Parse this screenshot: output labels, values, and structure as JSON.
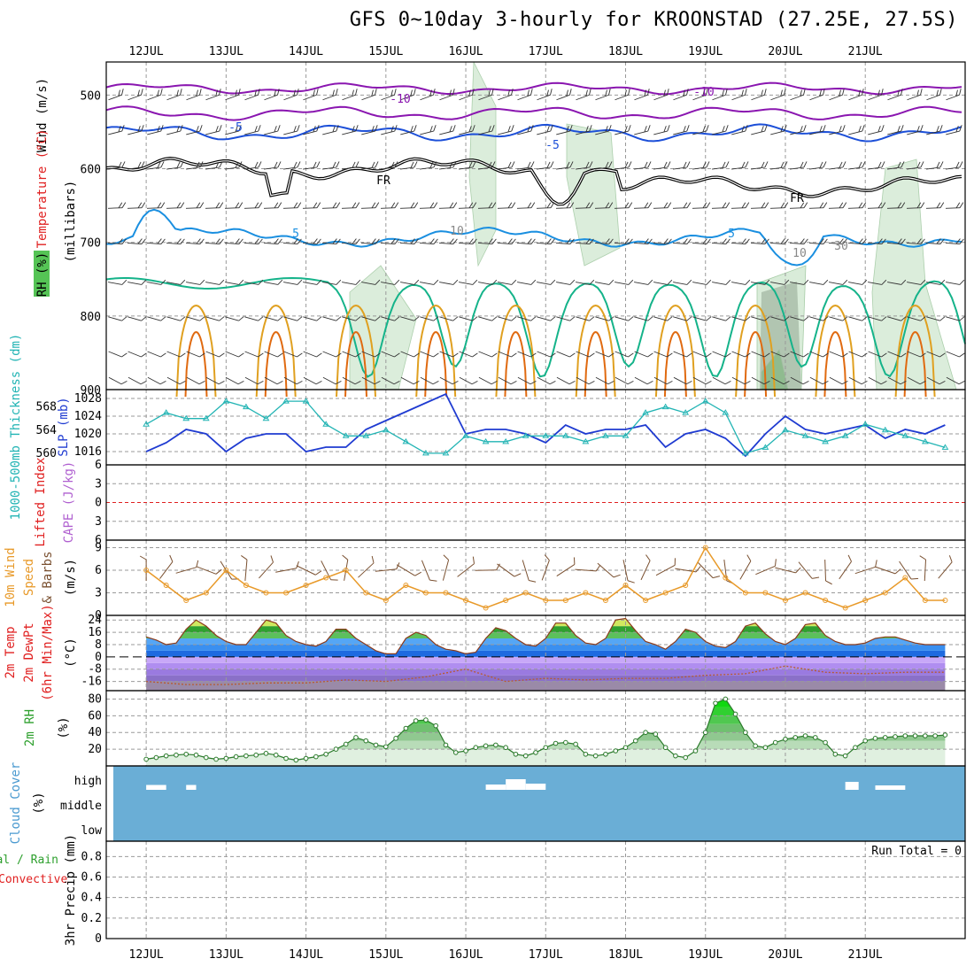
{
  "title": "GFS 0~10day 3-hourly for KROONSTAD (27.25E, 27.5S)",
  "dates": [
    "12JUL",
    "13JUL",
    "14JUL",
    "15JUL",
    "16JUL",
    "17JUL",
    "18JUL",
    "19JUL",
    "20JUL",
    "21JUL"
  ],
  "colors": {
    "grid": "#9a9a9a",
    "purple": "#8a16b0",
    "blue": "#1c4fd8",
    "lightblue": "#1a8fe0",
    "teal": "#15b38a",
    "orange": "#e0a020",
    "darkorange": "#e06a10",
    "magenta": "#d0108a",
    "black": "#000000",
    "slp": "#1f3bd1",
    "thick": "#22b4b4",
    "wind": "#e89a2a",
    "barb": "#7a5030",
    "rh": "#2ea02e",
    "cloud": "#6aaed6",
    "red": "#e02020"
  },
  "panels": {
    "upper": {
      "ylabel_parts": [
        "RH (%)",
        "Temperature (°C)",
        "Wind (m/s)"
      ],
      "ylabel_axis": "(millibars)",
      "yticks": [
        500,
        600,
        700,
        800,
        900
      ],
      "contour_labels": [
        "-10",
        "-10",
        "-5",
        "-5",
        "FR",
        "FR",
        "5",
        "5",
        "10",
        "10",
        "30"
      ]
    },
    "slp": {
      "ylabel_left": "1000-500mb Thickness (dm)",
      "ylabel_right": "SLP (mb)",
      "left_ticks": [
        560,
        564,
        568
      ],
      "right_ticks": [
        1016,
        1020,
        1024,
        1028
      ]
    },
    "cape": {
      "ylabel_a": "Lifted Index",
      "ylabel_b": "CAPE (J/kg)",
      "ticks": [
        "6",
        "3",
        "0",
        "3",
        "6"
      ]
    },
    "wind10": {
      "ylabel_a": "10m Wind",
      "ylabel_b": "Speed",
      "ylabel_c": "& Barbs",
      "unit": "(m/s)",
      "ticks": [
        0,
        3,
        6,
        9
      ]
    },
    "temp2m": {
      "ylabel_a": "2m Temp",
      "ylabel_b": "2m DewPt",
      "ylabel_c": "(6hr Min/Max)",
      "unit": "(°C)",
      "ticks": [
        24,
        16,
        8,
        0,
        -8,
        -16
      ]
    },
    "rh2m": {
      "ylabel": "2m RH",
      "unit": "(%)",
      "ticks": [
        20,
        40,
        60,
        80
      ]
    },
    "cloud": {
      "ylabel": "Cloud Cover",
      "unit": "(%)",
      "ticks": [
        "high",
        "middle",
        "low"
      ]
    },
    "precip": {
      "ylabel_a": "Total / Rain",
      "ylabel_b": "Convective",
      "ylabel_c": "3hr Precip (mm)",
      "ticks": [
        0,
        0.2,
        0.4,
        0.6,
        0.8
      ],
      "run_total": "Run Total = 0"
    }
  },
  "chart_data": [
    {
      "type": "line",
      "name": "slp",
      "unit": "mb",
      "x_hours": [
        0,
        6,
        12,
        18,
        24,
        30,
        36,
        42,
        48,
        54,
        60,
        66,
        72,
        78,
        84,
        90,
        96,
        102,
        108,
        114,
        120,
        126,
        132,
        138,
        144,
        150,
        156,
        162,
        168,
        174,
        180,
        186,
        192,
        198,
        204,
        210,
        216,
        222,
        228,
        234,
        240
      ],
      "values": [
        1016,
        1018,
        1021,
        1020,
        1016,
        1019,
        1020,
        1020,
        1016,
        1017,
        1017,
        1021,
        1023,
        1025,
        1027,
        1029,
        1020,
        1021,
        1021,
        1020,
        1018,
        1022,
        1020,
        1021,
        1021,
        1022,
        1017,
        1020,
        1021,
        1019,
        1015,
        1020,
        1024,
        1021,
        1020,
        1021,
        1022,
        1019,
        1021,
        1020,
        1022
      ],
      "ylim": [
        1013,
        1030
      ]
    },
    {
      "type": "line",
      "name": "thickness",
      "unit": "dm",
      "x_hours": [
        0,
        6,
        12,
        18,
        24,
        30,
        36,
        42,
        48,
        54,
        60,
        66,
        72,
        78,
        84,
        90,
        96,
        102,
        108,
        114,
        120,
        126,
        132,
        138,
        144,
        150,
        156,
        162,
        168,
        174,
        180,
        186,
        192,
        198,
        204,
        210,
        216,
        222,
        228,
        234,
        240
      ],
      "values": [
        565,
        567,
        566,
        566,
        569,
        568,
        566,
        569,
        569,
        565,
        563,
        563,
        564,
        562,
        560,
        560,
        563,
        562,
        562,
        563,
        563,
        563,
        562,
        563,
        563,
        567,
        568,
        567,
        569,
        567,
        560,
        561,
        564,
        563,
        562,
        563,
        565,
        564,
        563,
        562,
        561
      ],
      "ylim": [
        558,
        571
      ]
    },
    {
      "type": "line",
      "name": "wind10m",
      "unit": "m/s",
      "x_hours": [
        0,
        6,
        12,
        18,
        24,
        30,
        36,
        42,
        48,
        54,
        60,
        66,
        72,
        78,
        84,
        90,
        96,
        102,
        108,
        114,
        120,
        126,
        132,
        138,
        144,
        150,
        156,
        162,
        168,
        174,
        180,
        186,
        192,
        198,
        204,
        210,
        216,
        222,
        228,
        234,
        240
      ],
      "values": [
        6,
        4,
        2,
        3,
        6,
        4,
        3,
        3,
        4,
        5,
        6,
        3,
        2,
        4,
        3,
        3,
        2,
        1,
        2,
        3,
        2,
        2,
        3,
        2,
        4,
        2,
        3,
        4,
        9,
        5,
        3,
        3,
        2,
        3,
        2,
        1,
        2,
        3,
        5,
        2,
        2
      ],
      "ylim": [
        0,
        10
      ]
    },
    {
      "type": "area",
      "name": "temp2m",
      "unit": "°C",
      "x_hours": [
        0,
        3,
        6,
        9,
        12,
        15,
        18,
        21,
        24,
        27,
        30,
        33,
        36,
        39,
        42,
        45,
        48,
        51,
        54,
        57,
        60,
        63,
        66,
        69,
        72,
        75,
        78,
        81,
        84,
        87,
        90,
        93,
        96,
        99,
        102,
        105,
        108,
        111,
        114,
        117,
        120,
        123,
        126,
        129,
        132,
        135,
        138,
        141,
        144,
        147,
        150,
        153,
        156,
        159,
        162,
        165,
        168,
        171,
        174,
        177,
        180,
        183,
        186,
        189,
        192,
        195,
        198,
        201,
        204,
        207,
        210,
        213,
        216,
        219,
        222,
        225,
        228,
        231,
        234,
        237,
        240
      ],
      "values": [
        13,
        11,
        8,
        9,
        18,
        24,
        20,
        14,
        10,
        8,
        8,
        16,
        24,
        22,
        14,
        10,
        8,
        7,
        10,
        18,
        18,
        12,
        8,
        4,
        2,
        2,
        12,
        16,
        14,
        8,
        5,
        4,
        2,
        3,
        12,
        19,
        17,
        12,
        8,
        7,
        12,
        22,
        22,
        14,
        9,
        8,
        12,
        24,
        25,
        17,
        10,
        8,
        5,
        10,
        18,
        16,
        10,
        7,
        6,
        10,
        20,
        22,
        15,
        10,
        8,
        12,
        21,
        22,
        14,
        10,
        8,
        8,
        9,
        12,
        13,
        13,
        11,
        9,
        8,
        8,
        8
      ],
      "ylim": [
        -22,
        27
      ]
    },
    {
      "type": "line",
      "name": "dewpoint2m",
      "unit": "°C",
      "x_hours": [
        0,
        12,
        24,
        36,
        48,
        60,
        72,
        84,
        96,
        108,
        120,
        132,
        144,
        156,
        168,
        180,
        192,
        204,
        216,
        228,
        240
      ],
      "values": [
        -16,
        -18,
        -18,
        -17,
        -17,
        -15,
        -16,
        -13,
        -8,
        -16,
        -14,
        -15,
        -14,
        -14,
        -12,
        -11,
        -6,
        -10,
        -11,
        -10,
        -10
      ],
      "ylim": [
        -22,
        27
      ]
    },
    {
      "type": "area",
      "name": "rh2m",
      "unit": "%",
      "x_hours": [
        0,
        3,
        6,
        9,
        12,
        15,
        18,
        21,
        24,
        27,
        30,
        33,
        36,
        39,
        42,
        45,
        48,
        51,
        54,
        57,
        60,
        63,
        66,
        69,
        72,
        75,
        78,
        81,
        84,
        87,
        90,
        93,
        96,
        99,
        102,
        105,
        108,
        111,
        114,
        117,
        120,
        123,
        126,
        129,
        132,
        135,
        138,
        141,
        144,
        147,
        150,
        153,
        156,
        159,
        162,
        165,
        168,
        171,
        174,
        177,
        180,
        183,
        186,
        189,
        192,
        195,
        198,
        201,
        204,
        207,
        210,
        213,
        216,
        219,
        222,
        225,
        228,
        231,
        234,
        237,
        240
      ],
      "values": [
        8,
        10,
        12,
        13,
        14,
        13,
        10,
        8,
        9,
        11,
        12,
        13,
        15,
        13,
        9,
        7,
        9,
        11,
        14,
        20,
        26,
        34,
        30,
        25,
        23,
        33,
        45,
        54,
        55,
        48,
        25,
        16,
        18,
        22,
        24,
        25,
        22,
        14,
        12,
        16,
        22,
        27,
        28,
        26,
        14,
        12,
        14,
        18,
        22,
        30,
        40,
        38,
        22,
        12,
        10,
        18,
        40,
        75,
        80,
        62,
        40,
        24,
        22,
        28,
        32,
        34,
        36,
        34,
        28,
        14,
        12,
        22,
        30,
        33,
        34,
        35,
        36,
        36,
        36,
        36,
        37
      ],
      "ylim": [
        0,
        90
      ]
    },
    {
      "type": "table",
      "name": "cloud_cover_high",
      "unit": "%",
      "segments": [
        {
          "start_hour": 0,
          "end_hour": 6,
          "level": 5
        },
        {
          "start_hour": 12,
          "end_hour": 15,
          "level": 5
        },
        {
          "start_hour": 102,
          "end_hour": 108,
          "level": 6
        },
        {
          "start_hour": 108,
          "end_hour": 114,
          "level": 18
        },
        {
          "start_hour": 114,
          "end_hour": 120,
          "level": 8
        },
        {
          "start_hour": 210,
          "end_hour": 214,
          "level": 12
        },
        {
          "start_hour": 219,
          "end_hour": 228,
          "level": 4
        }
      ]
    },
    {
      "type": "bar",
      "name": "precip3h",
      "unit": "mm",
      "values": [],
      "ylim": [
        0,
        0.95
      ]
    }
  ]
}
